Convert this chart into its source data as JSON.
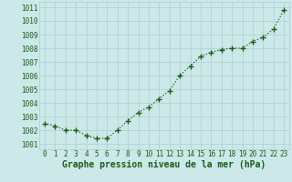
{
  "x": [
    0,
    1,
    2,
    3,
    4,
    5,
    6,
    7,
    8,
    9,
    10,
    11,
    12,
    13,
    14,
    15,
    16,
    17,
    18,
    19,
    20,
    21,
    22,
    23
  ],
  "y": [
    1002.5,
    1002.3,
    1002.0,
    1002.0,
    1001.6,
    1001.4,
    1001.4,
    1002.0,
    1002.7,
    1003.3,
    1003.7,
    1004.3,
    1004.9,
    1006.0,
    1006.7,
    1007.4,
    1007.7,
    1007.9,
    1008.0,
    1008.0,
    1008.5,
    1008.8,
    1009.4,
    1010.8
  ],
  "line_color": "#1a5c1a",
  "marker": "+",
  "marker_size": 4,
  "line_style": ":",
  "line_width": 0.9,
  "bg_color": "#cce8e8",
  "grid_color": "#aacfcf",
  "ylabel_ticks": [
    1001,
    1002,
    1003,
    1004,
    1005,
    1006,
    1007,
    1008,
    1009,
    1010,
    1011
  ],
  "ylim": [
    1000.6,
    1011.4
  ],
  "xlim": [
    -0.5,
    23.5
  ],
  "xlabel": "Graphe pression niveau de la mer (hPa)",
  "xlabel_fontsize": 7,
  "xlabel_color": "#1a5c1a",
  "tick_label_color": "#1a5c1a",
  "tick_fontsize": 5.5,
  "marker_edge_width": 1.0
}
